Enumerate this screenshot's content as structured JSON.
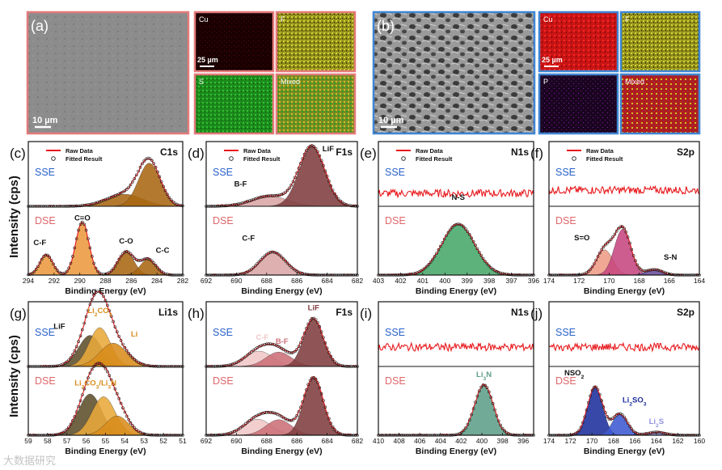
{
  "figure": {
    "ylabel": "Intensity (cps)",
    "xlabel": "Binding Energy (eV)",
    "watermark": "大数据研究"
  },
  "colors": {
    "raw": "#e8191d",
    "fit": "#222222",
    "sse": "#2a62c9",
    "dse": "#e0676a",
    "frame_a": "#e57a7a",
    "frame_b": "#3f86d4",
    "c_orange": "#ec9a3f",
    "c_brown": "#a86612",
    "c_darkred": "#7f3d3f",
    "c_lightred": "#d9a5a5",
    "c_pink": "#f0c7c7",
    "c_rose": "#cc6f78",
    "c_green": "#47a76a",
    "c_teal": "#5e9e8a",
    "c_magenta": "#c6457f",
    "c_salmon": "#ee9c86",
    "c_purple": "#6b4f9c",
    "c_navy": "#1d2f9c",
    "c_blue2": "#3d5ad1",
    "c_lavender": "#8f92e0",
    "c_olive": "#5d4e2a",
    "c_gold": "#d88c1a",
    "c_amber": "#e8a93a",
    "c_yellow": "#c6c21f",
    "c_cu_red": "#cc1010",
    "c_s_green": "#1e9922",
    "c_p_purple": "#6a1180",
    "c_mixed": "#8a8a20"
  },
  "images": {
    "a": {
      "label": "(a)",
      "scale": "10 µm",
      "maps": [
        {
          "label": "Cu",
          "scale": "25 µm"
        },
        {
          "label": "F",
          "scale": ""
        },
        {
          "label": "S",
          "scale": ""
        },
        {
          "label": "Mixed",
          "scale": ""
        }
      ]
    },
    "b": {
      "label": "(b)",
      "scale": "10 µm",
      "maps": [
        {
          "label": "Cu",
          "scale": "25 µm"
        },
        {
          "label": "F",
          "scale": ""
        },
        {
          "label": "P",
          "scale": ""
        },
        {
          "label": "Mixed",
          "scale": ""
        }
      ]
    }
  },
  "chart_data": [
    {
      "id": "c",
      "label": "(c)",
      "title": "C1s",
      "type": "xps",
      "xlim": [
        294,
        282
      ],
      "xticks": [
        294,
        292,
        290,
        288,
        286,
        284,
        282
      ],
      "legend": [
        "Raw Data",
        "Fitted Result"
      ],
      "top": {
        "name": "SSE",
        "ylim": [
          0,
          1.35
        ],
        "peaks": [
          {
            "label": "",
            "center": 286.5,
            "amp": 0.25,
            "width": 1.4,
            "color": "c_brown"
          },
          {
            "label": "",
            "center": 284.6,
            "amp": 0.9,
            "width": 0.85,
            "color": "c_brown"
          }
        ]
      },
      "bottom": {
        "name": "DSE",
        "ylim": [
          0,
          1.3
        ],
        "peaks": [
          {
            "label": "C-F",
            "center": 292.6,
            "amp": 0.38,
            "width": 0.5,
            "color": "c_orange"
          },
          {
            "label": "C=O",
            "center": 289.8,
            "amp": 1.0,
            "width": 0.52,
            "color": "c_orange"
          },
          {
            "label": "C-O",
            "center": 286.4,
            "amp": 0.44,
            "width": 0.62,
            "color": "c_brown"
          },
          {
            "label": "C-C",
            "center": 284.7,
            "amp": 0.3,
            "width": 0.6,
            "color": "c_brown"
          }
        ]
      }
    },
    {
      "id": "d",
      "label": "(d)",
      "title": "F1s",
      "type": "xps",
      "xlim": [
        692,
        682
      ],
      "xticks": [
        692,
        690,
        688,
        686,
        684,
        682
      ],
      "legend": [
        "Raw Data",
        "Fitted Result"
      ],
      "top": {
        "name": "SSE",
        "ylim": [
          0,
          1.08
        ],
        "peaks": [
          {
            "label": "B-F",
            "center": 687.8,
            "amp": 0.17,
            "width": 1.2,
            "color": "c_lightred"
          },
          {
            "label": "LiF",
            "center": 685.0,
            "amp": 1.0,
            "width": 0.85,
            "color": "c_darkred"
          }
        ]
      },
      "bottom": {
        "name": "DSE",
        "ylim": [
          0,
          1.55
        ],
        "peaks": [
          {
            "label": "C-F",
            "center": 687.6,
            "amp": 0.52,
            "width": 0.85,
            "color": "c_lightred"
          }
        ]
      }
    },
    {
      "id": "e",
      "label": "(e)",
      "title": "N1s",
      "type": "xps",
      "xlim": [
        403,
        396
      ],
      "xticks": [
        403,
        402,
        401,
        400,
        399,
        398,
        397,
        396
      ],
      "legend": [
        "Raw Data",
        "Fitted Result"
      ],
      "top": {
        "name": "SSE",
        "ylim": [
          0,
          1
        ],
        "flat": 0.2,
        "peaks": []
      },
      "bottom": {
        "name": "DSE",
        "ylim": [
          0,
          1.35
        ],
        "peaks": [
          {
            "label": "N-S",
            "center": 399.4,
            "amp": 1.0,
            "width": 0.75,
            "color": "c_green"
          }
        ]
      }
    },
    {
      "id": "f",
      "label": "(f)",
      "title": "S2p",
      "type": "xps",
      "xlim": [
        174,
        164
      ],
      "xticks": [
        174,
        172,
        170,
        168,
        166,
        164
      ],
      "legend": [
        "Raw Data",
        "Fitted Result"
      ],
      "top": {
        "name": "SSE",
        "ylim": [
          0,
          1
        ],
        "flat": 0.25,
        "peaks": []
      },
      "bottom": {
        "name": "DSE",
        "ylim": [
          0,
          1.5
        ],
        "peaks": [
          {
            "label": "S=O",
            "center": 170.3,
            "amp": 0.55,
            "width": 0.55,
            "color": "c_salmon"
          },
          {
            "label": "",
            "center": 169.1,
            "amp": 1.0,
            "width": 0.55,
            "color": "c_magenta"
          },
          {
            "label": "S-N",
            "center": 167.0,
            "amp": 0.12,
            "width": 0.55,
            "color": "c_purple"
          }
        ]
      }
    },
    {
      "id": "g",
      "label": "(g)",
      "title": "Li1s",
      "type": "xps",
      "xlim": [
        59,
        51
      ],
      "xticks": [
        59,
        58,
        57,
        56,
        55,
        54,
        53,
        52,
        51
      ],
      "legend": [],
      "top": {
        "name": "SSE",
        "ylim": [
          0,
          1.25
        ],
        "peaks": [
          {
            "label": "LiF",
            "center": 55.8,
            "amp": 0.6,
            "width": 0.6,
            "color": "c_olive"
          },
          {
            "label": "Li2CO3",
            "center": 55.3,
            "amp": 0.75,
            "width": 0.55,
            "color": "c_amber"
          },
          {
            "label": "Li",
            "center": 54.6,
            "amp": 0.45,
            "width": 0.7,
            "color": "c_gold"
          }
        ]
      },
      "bottom": {
        "name": "DSE",
        "ylim": [
          0,
          1.25
        ],
        "peaks": [
          {
            "label": "",
            "center": 55.8,
            "amp": 0.75,
            "width": 0.6,
            "color": "c_olive"
          },
          {
            "label": "Li2CO3/Li3N",
            "center": 55.1,
            "amp": 0.7,
            "width": 0.6,
            "color": "c_amber"
          },
          {
            "label": "",
            "center": 54.4,
            "amp": 0.35,
            "width": 0.6,
            "color": "c_gold"
          }
        ]
      }
    },
    {
      "id": "h",
      "label": "(h)",
      "title": "F1s",
      "type": "xps",
      "xlim": [
        692,
        682
      ],
      "xticks": [
        692,
        690,
        688,
        686,
        684,
        682
      ],
      "legend": [],
      "top": {
        "name": "SSE",
        "ylim": [
          0,
          1.35
        ],
        "peaks": [
          {
            "label": "C-F",
            "center": 688.5,
            "amp": 0.32,
            "width": 0.9,
            "color": "c_pink"
          },
          {
            "label": "B-F",
            "center": 687.2,
            "amp": 0.3,
            "width": 0.85,
            "color": "c_rose"
          },
          {
            "label": "LiF",
            "center": 684.9,
            "amp": 1.0,
            "width": 0.65,
            "color": "c_darkred"
          }
        ]
      },
      "bottom": {
        "name": "DSE",
        "ylim": [
          0,
          1.2
        ],
        "peaks": [
          {
            "label": "",
            "center": 688.6,
            "amp": 0.28,
            "width": 0.9,
            "color": "c_pink"
          },
          {
            "label": "",
            "center": 687.2,
            "amp": 0.27,
            "width": 0.85,
            "color": "c_rose"
          },
          {
            "label": "",
            "center": 684.9,
            "amp": 1.0,
            "width": 0.65,
            "color": "c_darkred"
          }
        ]
      }
    },
    {
      "id": "i",
      "label": "(i)",
      "title": "N1s",
      "type": "xps",
      "xlim": [
        410,
        395
      ],
      "xticks": [
        410,
        408,
        406,
        404,
        402,
        400,
        398,
        396
      ],
      "legend": [],
      "top": {
        "name": "SSE",
        "ylim": [
          0,
          1
        ],
        "flat": 0.3,
        "peaks": []
      },
      "bottom": {
        "name": "DSE",
        "ylim": [
          0,
          1.3
        ],
        "peaks": [
          {
            "label": "Li3N",
            "center": 399.8,
            "amp": 0.95,
            "width": 0.9,
            "color": "c_teal"
          }
        ]
      }
    },
    {
      "id": "j",
      "label": "(j)",
      "title": "S2p",
      "type": "xps",
      "xlim": [
        174,
        160
      ],
      "xticks": [
        174,
        172,
        170,
        168,
        166,
        164,
        162,
        160
      ],
      "legend": [],
      "top": {
        "name": "SSE",
        "ylim": [
          0,
          1
        ],
        "flat": 0.3,
        "peaks": []
      },
      "bottom": {
        "name": "DSE",
        "ylim": [
          0,
          1.35
        ],
        "peaks": [
          {
            "label": "NSO2",
            "center": 169.7,
            "amp": 0.95,
            "width": 0.7,
            "color": "c_navy"
          },
          {
            "label": "Li2SO3",
            "center": 167.4,
            "amp": 0.42,
            "width": 0.7,
            "color": "c_blue2"
          },
          {
            "label": "Li2S",
            "center": 164.0,
            "amp": 0.06,
            "width": 0.8,
            "color": "c_lavender"
          }
        ]
      }
    }
  ]
}
